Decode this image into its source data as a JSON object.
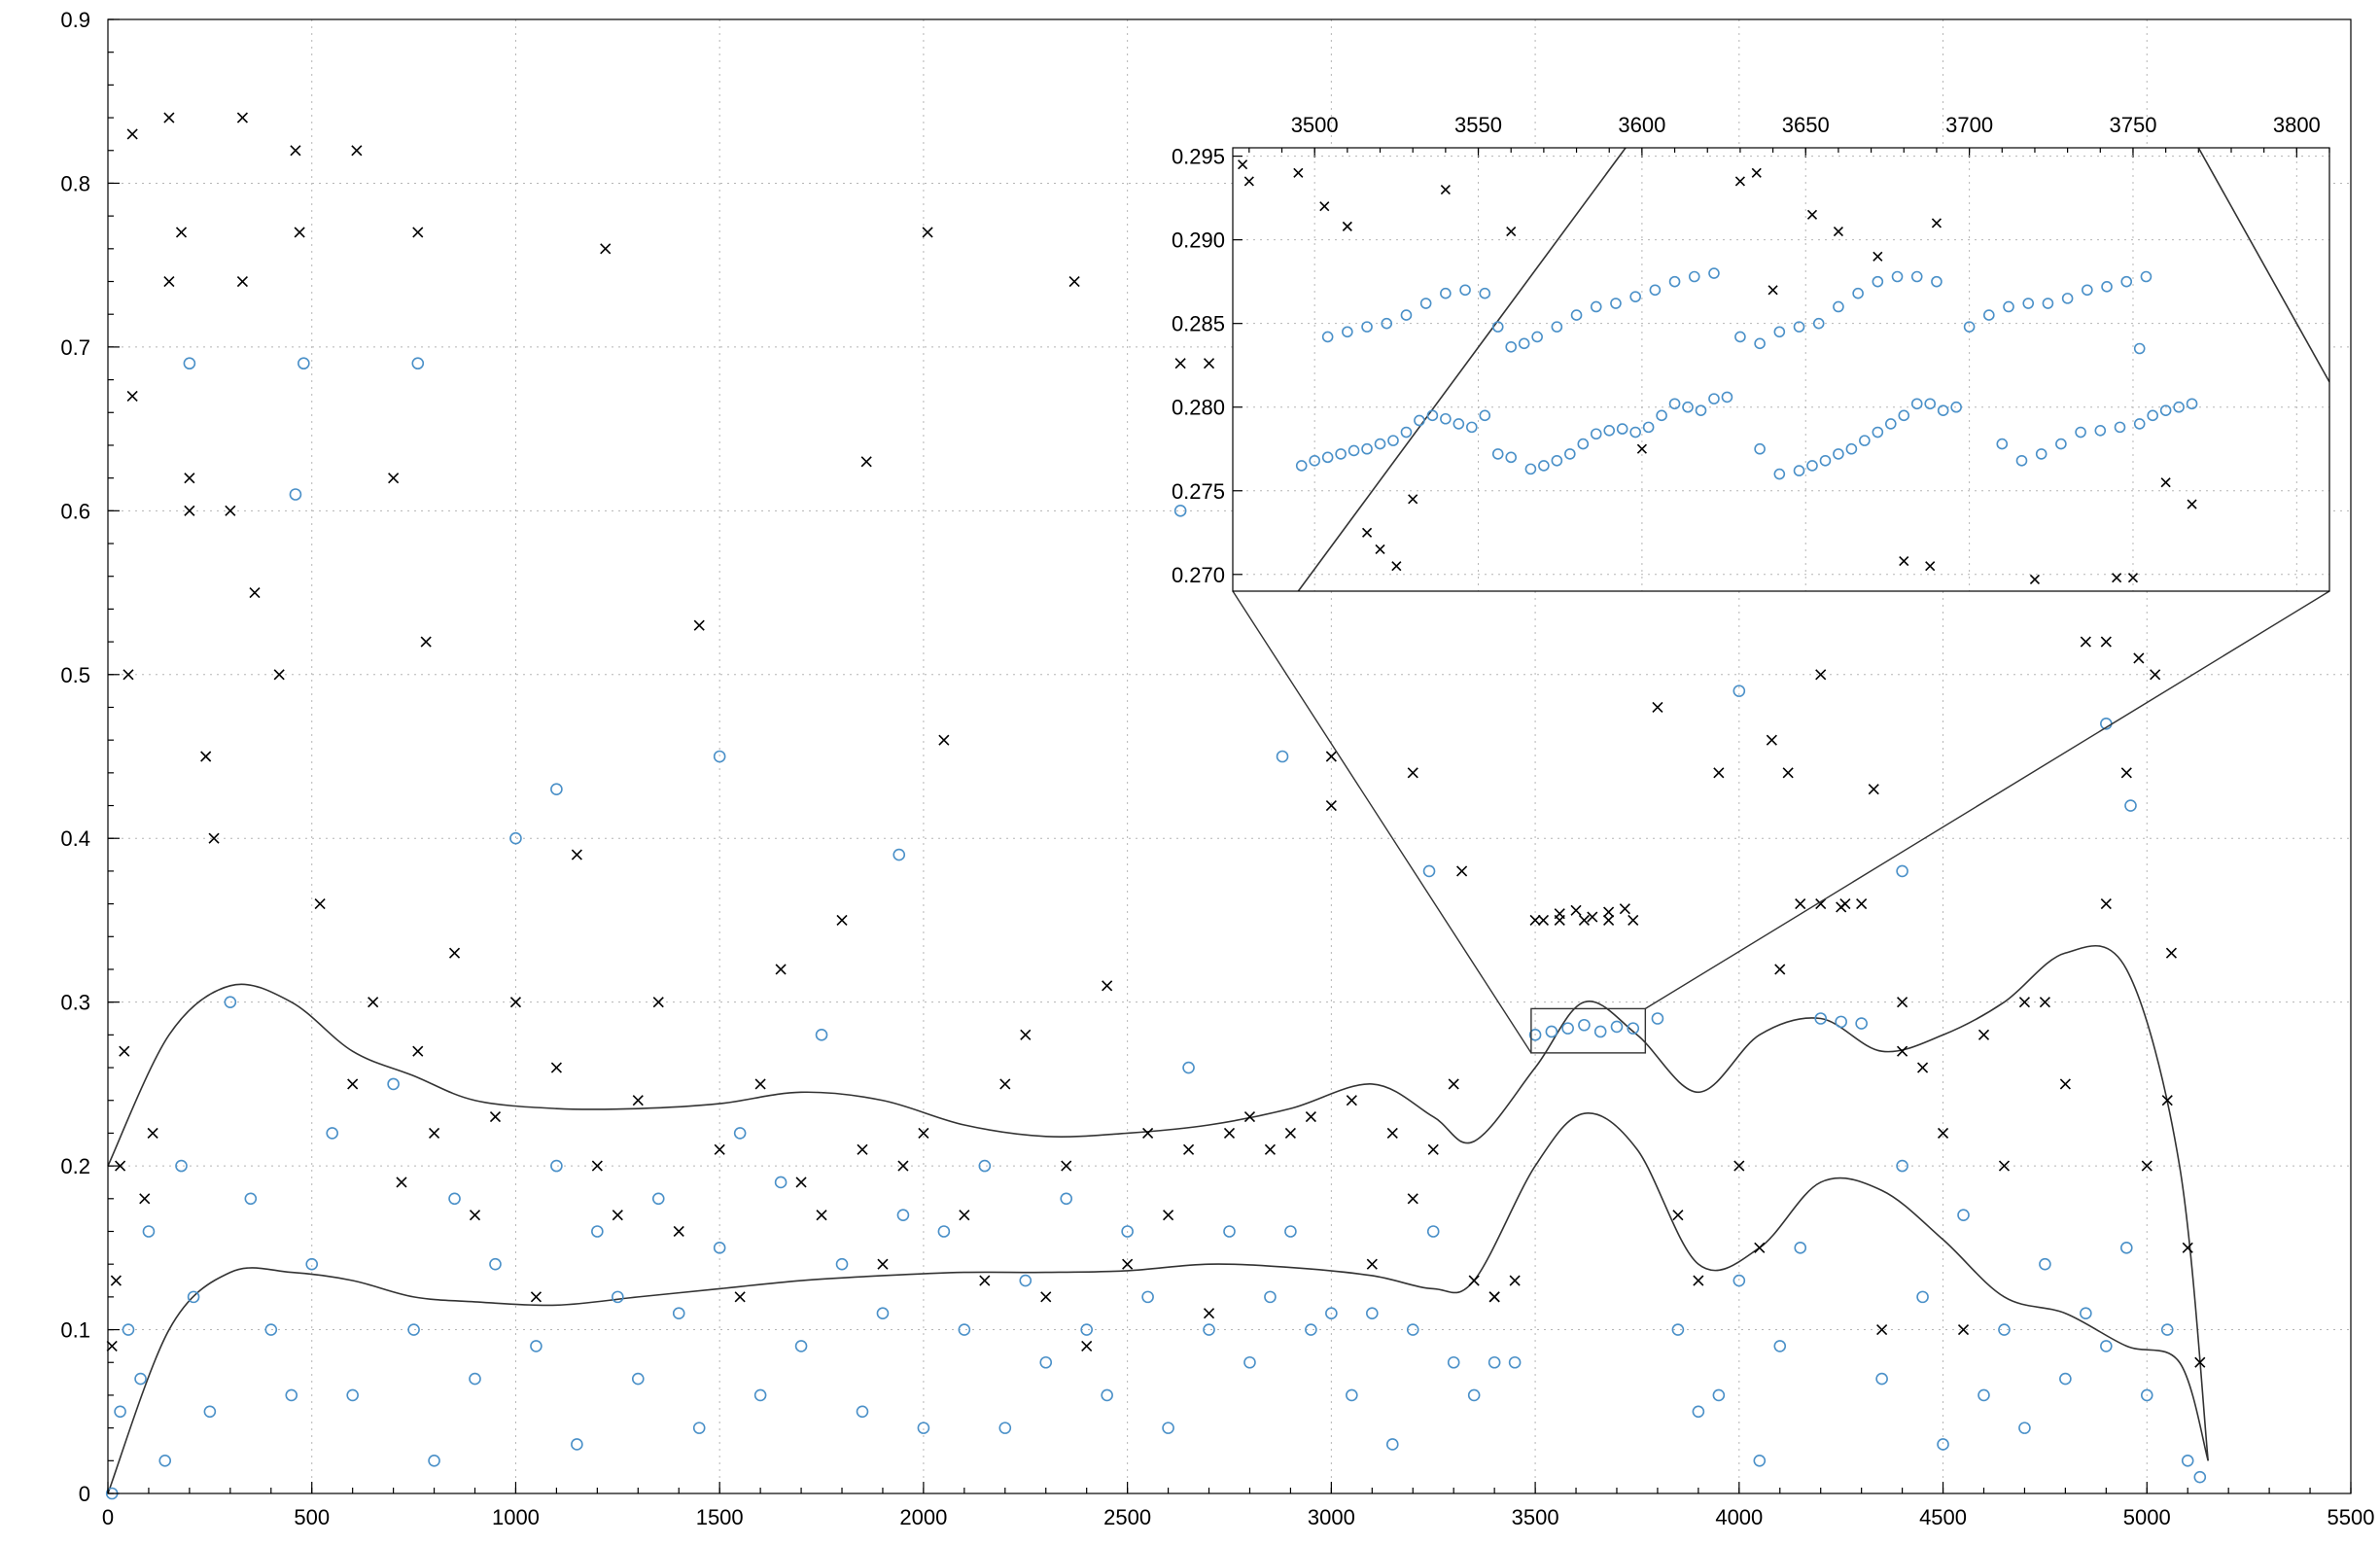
{
  "chart_data": [
    {
      "type": "scatter",
      "panel": "main",
      "title": "",
      "xlabel": "",
      "ylabel": "",
      "xlim": [
        0,
        5500
      ],
      "ylim": [
        0,
        0.9
      ],
      "x_ticks": [
        "0",
        "500",
        "1000",
        "1500",
        "2000",
        "2500",
        "3000",
        "3500",
        "4000",
        "4500",
        "5000",
        "5500"
      ],
      "y_ticks": [
        "0",
        "0.1",
        "0.2",
        "0.3",
        "0.4",
        "0.5",
        "0.6",
        "0.7",
        "0.8",
        "0.9"
      ],
      "grid": true,
      "series_colors": {
        "cross": "#000000",
        "circle": "#4a90c8"
      },
      "series": [
        {
          "marker": "x",
          "x": [
            10,
            20,
            30,
            40,
            50,
            60,
            90,
            110,
            150,
            180,
            200,
            240,
            260,
            300,
            330,
            360,
            420,
            470,
            520,
            600,
            650,
            700,
            720,
            760,
            780,
            800,
            850,
            900,
            950,
            1000,
            1050,
            1100,
            1150,
            1200,
            1250,
            1300,
            1350,
            1400,
            1450,
            1500,
            1550,
            1600,
            1650,
            1700,
            1750,
            1800,
            1850,
            1900,
            1950,
            2000,
            2050,
            2100,
            2150,
            2200,
            2250,
            2300,
            2350,
            2400,
            2450,
            2500,
            2550,
            2600,
            2650,
            2700,
            2750,
            2800,
            2850,
            2900,
            2950,
            3000,
            3050,
            3100,
            3150,
            3200,
            3250,
            3300,
            3350,
            3400,
            3450,
            3520,
            3560,
            3600,
            3640,
            3680,
            3720,
            3800,
            3850,
            3900,
            3950,
            4000,
            4050,
            4100,
            4150,
            4200,
            4250,
            4300,
            4350,
            4400,
            4450,
            4500,
            4550,
            4600,
            4650,
            4700,
            4750,
            4800,
            4850,
            4900,
            4950,
            5000,
            5050,
            5100,
            5130,
            60,
            150,
            200,
            330,
            460,
            610,
            760,
            1220,
            1860,
            2010,
            2370,
            2630,
            2700,
            3000,
            3200,
            3320,
            3400,
            3500,
            3560,
            3620,
            3680,
            3740,
            4080,
            4120,
            4200,
            4260,
            4330,
            4400,
            4900,
            4980,
            5020,
            5060
          ],
          "y": [
            0.09,
            0.13,
            0.2,
            0.27,
            0.5,
            0.83,
            0.18,
            0.22,
            0.84,
            0.77,
            0.62,
            0.45,
            0.4,
            0.6,
            0.84,
            0.55,
            0.5,
            0.77,
            0.36,
            0.25,
            0.3,
            0.62,
            0.19,
            0.27,
            0.52,
            0.22,
            0.33,
            0.17,
            0.23,
            0.3,
            0.12,
            0.26,
            0.39,
            0.2,
            0.17,
            0.24,
            0.3,
            0.16,
            0.53,
            0.21,
            0.12,
            0.25,
            0.32,
            0.19,
            0.17,
            0.35,
            0.21,
            0.14,
            0.2,
            0.22,
            0.46,
            0.17,
            0.13,
            0.25,
            0.28,
            0.12,
            0.2,
            0.09,
            0.31,
            0.14,
            0.22,
            0.17,
            0.21,
            0.11,
            0.22,
            0.23,
            0.21,
            0.22,
            0.23,
            0.45,
            0.24,
            0.14,
            0.22,
            0.18,
            0.21,
            0.25,
            0.13,
            0.12,
            0.13,
            0.35,
            0.354,
            0.356,
            0.352,
            0.355,
            0.357,
            0.48,
            0.17,
            0.13,
            0.44,
            0.2,
            0.15,
            0.32,
            0.36,
            0.36,
            0.358,
            0.36,
            0.1,
            0.3,
            0.26,
            0.22,
            0.1,
            0.28,
            0.2,
            0.3,
            0.3,
            0.25,
            0.52,
            0.36,
            0.44,
            0.2,
            0.24,
            0.15,
            0.08,
            0.67,
            0.74,
            0.6,
            0.74,
            0.82,
            0.82,
            0.77,
            0.76,
            0.63,
            0.77,
            0.74,
            0.69,
            0.69,
            0.42,
            0.44,
            0.38,
            0.12,
            0.35,
            0.35,
            0.35,
            0.35,
            0.35,
            0.46,
            0.44,
            0.5,
            0.36,
            0.43,
            0.27,
            0.52,
            0.51,
            0.5,
            0.33
          ]
        },
        {
          "marker": "o",
          "x": [
            10,
            30,
            50,
            80,
            100,
            140,
            180,
            210,
            250,
            300,
            350,
            400,
            450,
            500,
            550,
            600,
            700,
            750,
            800,
            850,
            900,
            950,
            1000,
            1050,
            1100,
            1150,
            1200,
            1250,
            1300,
            1350,
            1400,
            1450,
            1500,
            1550,
            1600,
            1650,
            1700,
            1750,
            1800,
            1850,
            1900,
            1950,
            2000,
            2050,
            2100,
            2150,
            2200,
            2250,
            2300,
            2350,
            2400,
            2450,
            2500,
            2550,
            2600,
            2650,
            2700,
            2750,
            2800,
            2850,
            2900,
            2950,
            3000,
            3050,
            3100,
            3150,
            3200,
            3250,
            3300,
            3350,
            3400,
            3450,
            3500,
            3540,
            3580,
            3620,
            3660,
            3700,
            3740,
            3800,
            3850,
            3900,
            3950,
            4000,
            4050,
            4100,
            4150,
            4200,
            4250,
            4300,
            4350,
            4400,
            4450,
            4500,
            4550,
            4600,
            4650,
            4700,
            4750,
            4800,
            4850,
            4900,
            4950,
            5000,
            5050,
            5100,
            5130,
            200,
            460,
            480,
            760,
            1100,
            1500,
            1940,
            2630,
            2880,
            3240,
            4000,
            4400,
            4900,
            4960
          ],
          "y": [
            0,
            0.05,
            0.1,
            0.07,
            0.16,
            0.02,
            0.2,
            0.12,
            0.05,
            0.3,
            0.18,
            0.1,
            0.06,
            0.14,
            0.22,
            0.06,
            0.25,
            0.1,
            0.02,
            0.18,
            0.07,
            0.14,
            0.4,
            0.09,
            0.2,
            0.03,
            0.16,
            0.12,
            0.07,
            0.18,
            0.11,
            0.04,
            0.15,
            0.22,
            0.06,
            0.19,
            0.09,
            0.28,
            0.14,
            0.05,
            0.11,
            0.17,
            0.04,
            0.16,
            0.1,
            0.2,
            0.04,
            0.13,
            0.08,
            0.18,
            0.1,
            0.06,
            0.16,
            0.12,
            0.04,
            0.26,
            0.1,
            0.16,
            0.08,
            0.12,
            0.16,
            0.1,
            0.11,
            0.06,
            0.11,
            0.03,
            0.1,
            0.16,
            0.08,
            0.06,
            0.08,
            0.08,
            0.28,
            0.282,
            0.284,
            0.286,
            0.282,
            0.285,
            0.284,
            0.29,
            0.1,
            0.05,
            0.06,
            0.13,
            0.02,
            0.09,
            0.15,
            0.29,
            0.288,
            0.287,
            0.07,
            0.2,
            0.12,
            0.03,
            0.17,
            0.06,
            0.1,
            0.04,
            0.14,
            0.07,
            0.11,
            0.09,
            0.15,
            0.06,
            0.1,
            0.02,
            0.01,
            0.69,
            0.61,
            0.69,
            0.69,
            0.43,
            0.45,
            0.39,
            0.6,
            0.45,
            0.38,
            0.49,
            0.38,
            0.47,
            0.42
          ]
        }
      ],
      "curves": [
        {
          "name": "",
          "x": [
            0,
            150,
            300,
            450,
            600,
            750,
            900,
            1100,
            1300,
            1500,
            1700,
            1900,
            2100,
            2300,
            2500,
            2700,
            2900,
            3100,
            3250,
            3350,
            3500,
            3620,
            3750,
            3900,
            4050,
            4200,
            4350,
            4500,
            4650,
            4800,
            4950,
            5080,
            5150
          ],
          "y": [
            0.2,
            0.28,
            0.31,
            0.3,
            0.27,
            0.255,
            0.24,
            0.235,
            0.235,
            0.238,
            0.245,
            0.24,
            0.225,
            0.218,
            0.22,
            0.225,
            0.235,
            0.25,
            0.23,
            0.215,
            0.26,
            0.3,
            0.28,
            0.245,
            0.28,
            0.29,
            0.27,
            0.28,
            0.3,
            0.33,
            0.32,
            0.2,
            0.02
          ]
        },
        {
          "name": "",
          "x": [
            0,
            150,
            300,
            450,
            600,
            750,
            900,
            1100,
            1300,
            1500,
            1700,
            1900,
            2100,
            2300,
            2500,
            2700,
            2900,
            3100,
            3250,
            3350,
            3500,
            3620,
            3750,
            3900,
            4050,
            4200,
            4350,
            4500,
            4650,
            4800,
            4950,
            5080,
            5150
          ],
          "y": [
            0.0,
            0.1,
            0.135,
            0.135,
            0.13,
            0.12,
            0.117,
            0.115,
            0.12,
            0.125,
            0.13,
            0.133,
            0.135,
            0.135,
            0.136,
            0.14,
            0.138,
            0.133,
            0.125,
            0.13,
            0.2,
            0.232,
            0.21,
            0.14,
            0.15,
            0.19,
            0.185,
            0.155,
            0.12,
            0.11,
            0.09,
            0.08,
            0.02
          ]
        }
      ],
      "zoom_rect": {
        "x": [
          3490,
          3770
        ],
        "y": [
          0.269,
          0.296
        ]
      }
    },
    {
      "type": "scatter",
      "panel": "inset",
      "title": "",
      "xlim": [
        3475,
        3810
      ],
      "ylim": [
        0.269,
        0.2955
      ],
      "x_ticks": [
        "3500",
        "3550",
        "3600",
        "3650",
        "3700",
        "3750",
        "3800"
      ],
      "y_ticks": [
        "0.270",
        "0.275",
        "0.280",
        "0.285",
        "0.290",
        "0.295"
      ],
      "x_axis_position": "top",
      "grid": true,
      "series": [
        {
          "marker": "x",
          "x": [
            3478,
            3480,
            3495,
            3503,
            3510,
            3516,
            3520,
            3525,
            3530,
            3540,
            3560,
            3600,
            3630,
            3635,
            3640,
            3652,
            3660,
            3672,
            3680,
            3688,
            3690,
            3720,
            3745,
            3750,
            3760,
            3768
          ],
          "y": [
            0.2945,
            0.2935,
            0.294,
            0.292,
            0.2908,
            0.2725,
            0.2715,
            0.2705,
            0.2745,
            0.293,
            0.2905,
            0.2775,
            0.2935,
            0.294,
            0.287,
            0.2915,
            0.2905,
            0.289,
            0.2708,
            0.2705,
            0.291,
            0.2697,
            0.2698,
            0.2698,
            0.2755,
            0.2742
          ]
        },
        {
          "marker": "o",
          "x": [
            3496,
            3500,
            3504,
            3508,
            3512,
            3516,
            3520,
            3524,
            3528,
            3532,
            3536,
            3540,
            3544,
            3548,
            3552,
            3556,
            3560,
            3566,
            3570,
            3574,
            3578,
            3582,
            3586,
            3590,
            3594,
            3598,
            3602,
            3606,
            3610,
            3614,
            3618,
            3622,
            3626,
            3636,
            3642,
            3648,
            3652,
            3656,
            3660,
            3664,
            3668,
            3672,
            3676,
            3680,
            3684,
            3688,
            3692,
            3696,
            3710,
            3716,
            3722,
            3728,
            3734,
            3740,
            3746,
            3752,
            3756,
            3760,
            3764,
            3768,
            3504,
            3510,
            3516,
            3522,
            3528,
            3534,
            3540,
            3546,
            3552,
            3556,
            3560,
            3564,
            3568,
            3574,
            3580,
            3586,
            3592,
            3598,
            3604,
            3610,
            3616,
            3622,
            3630,
            3636,
            3642,
            3648,
            3654,
            3660,
            3666,
            3672,
            3678,
            3684,
            3690,
            3700,
            3706,
            3712,
            3718,
            3724,
            3730,
            3736,
            3742,
            3748,
            3752,
            3754
          ],
          "y": [
            0.2765,
            0.2768,
            0.277,
            0.2772,
            0.2774,
            0.2775,
            0.2778,
            0.278,
            0.2785,
            0.2792,
            0.2795,
            0.2793,
            0.279,
            0.2788,
            0.2795,
            0.2772,
            0.277,
            0.2763,
            0.2765,
            0.2768,
            0.2772,
            0.2778,
            0.2784,
            0.2786,
            0.2787,
            0.2785,
            0.2788,
            0.2795,
            0.2802,
            0.28,
            0.2798,
            0.2805,
            0.2806,
            0.2775,
            0.276,
            0.2762,
            0.2765,
            0.2768,
            0.2772,
            0.2775,
            0.278,
            0.2785,
            0.279,
            0.2795,
            0.2802,
            0.2802,
            0.2798,
            0.28,
            0.2778,
            0.2768,
            0.2772,
            0.2778,
            0.2785,
            0.2786,
            0.2788,
            0.279,
            0.2795,
            0.2798,
            0.28,
            0.2802,
            0.2842,
            0.2845,
            0.2848,
            0.285,
            0.2855,
            0.2862,
            0.2868,
            0.287,
            0.2868,
            0.2848,
            0.2836,
            0.2838,
            0.2842,
            0.2848,
            0.2855,
            0.286,
            0.2862,
            0.2866,
            0.287,
            0.2875,
            0.2878,
            0.288,
            0.2842,
            0.2838,
            0.2845,
            0.2848,
            0.285,
            0.286,
            0.2868,
            0.2875,
            0.2878,
            0.2878,
            0.2875,
            0.2848,
            0.2855,
            0.286,
            0.2862,
            0.2862,
            0.2865,
            0.287,
            0.2872,
            0.2875,
            0.2835,
            0.2878
          ]
        }
      ],
      "curves": [
        {
          "name": "",
          "x": [
            3495,
            3595
          ],
          "y": [
            0.269,
            0.2955
          ]
        }
      ]
    }
  ]
}
